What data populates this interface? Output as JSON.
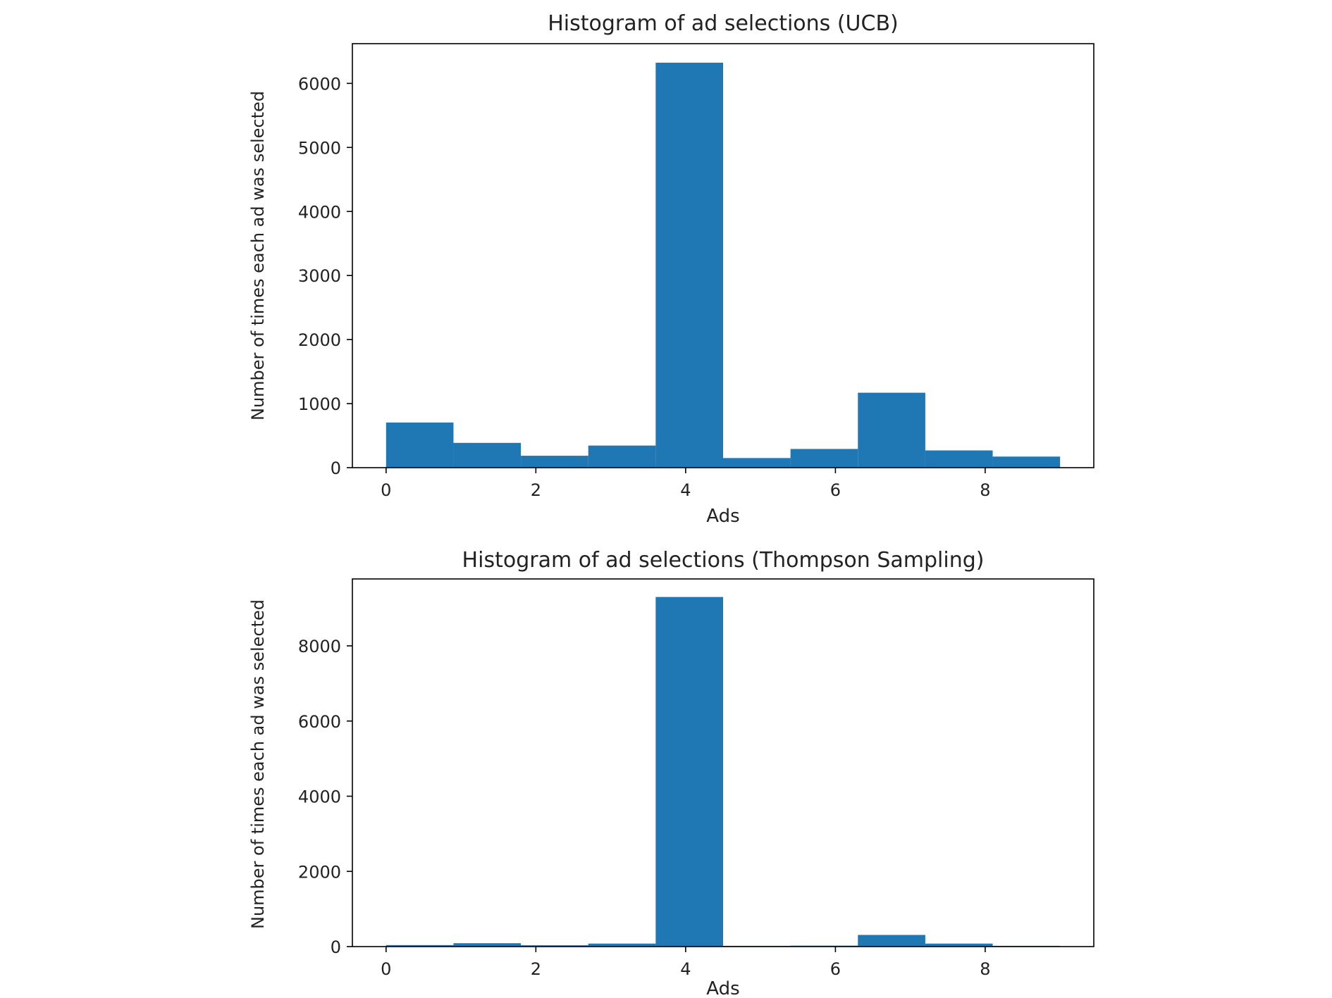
{
  "colors": {
    "bar": "#1f77b4",
    "axis": "#000000",
    "text": "#222222"
  },
  "chart_data": [
    {
      "type": "bar",
      "title": "Histogram of ad selections (UCB)",
      "xlabel": "Ads",
      "ylabel": "Number of times each ad was selected",
      "xlim": [
        -0.45,
        9.45
      ],
      "ylim": [
        0,
        6620
      ],
      "xticks": [
        0,
        2,
        4,
        6,
        8
      ],
      "yticks": [
        0,
        1000,
        2000,
        3000,
        4000,
        5000,
        6000
      ],
      "bins": [
        [
          0,
          0.9
        ],
        [
          0.9,
          1.8
        ],
        [
          1.8,
          2.7
        ],
        [
          2.7,
          3.6
        ],
        [
          3.6,
          4.5
        ],
        [
          4.5,
          5.4
        ],
        [
          5.4,
          6.3
        ],
        [
          6.3,
          7.2
        ],
        [
          7.2,
          8.1
        ],
        [
          8.1,
          9.0
        ]
      ],
      "values": [
        705,
        387,
        186,
        345,
        6323,
        150,
        292,
        1170,
        269,
        173
      ],
      "grid": false,
      "legend": false
    },
    {
      "type": "bar",
      "title": "Histogram of ad selections  (Thompson Sampling)",
      "xlabel": "Ads",
      "ylabel": "Number of times each ad was selected",
      "xlim": [
        -0.45,
        9.45
      ],
      "ylim": [
        0,
        9780
      ],
      "xticks": [
        0,
        2,
        4,
        6,
        8
      ],
      "yticks": [
        0,
        2000,
        4000,
        6000,
        8000
      ],
      "bins": [
        [
          0,
          0.9
        ],
        [
          0.9,
          1.8
        ],
        [
          1.8,
          2.7
        ],
        [
          2.7,
          3.6
        ],
        [
          3.6,
          4.5
        ],
        [
          4.5,
          5.4
        ],
        [
          5.4,
          6.3
        ],
        [
          6.3,
          7.2
        ],
        [
          7.2,
          8.1
        ],
        [
          8.1,
          9.0
        ]
      ],
      "values": [
        40,
        90,
        35,
        80,
        9300,
        20,
        25,
        310,
        80,
        20
      ],
      "grid": false,
      "legend": false
    }
  ]
}
